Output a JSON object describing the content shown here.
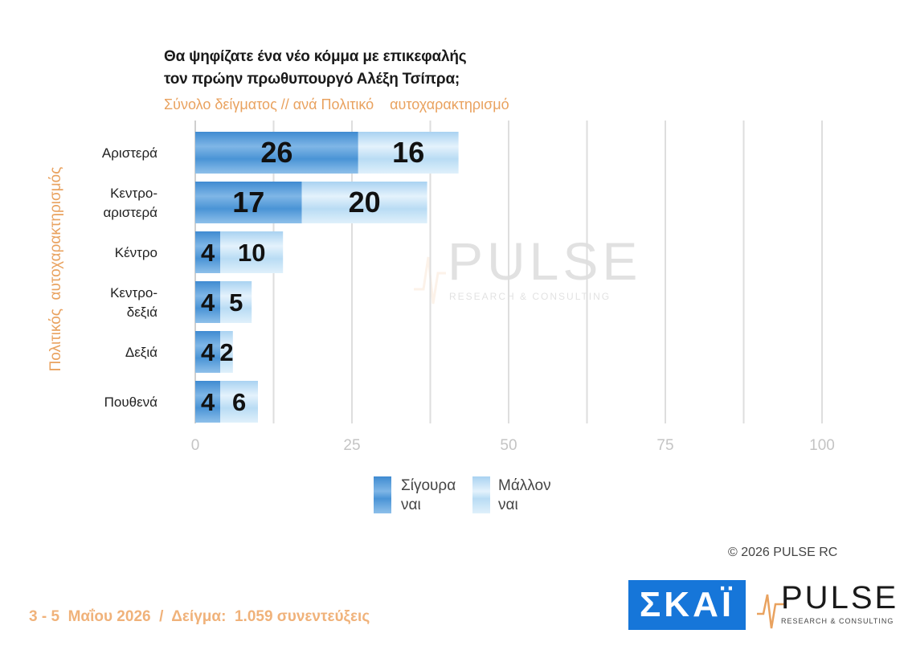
{
  "chart_data": {
    "type": "bar",
    "orientation": "horizontal",
    "stacked": true,
    "title_lines": [
      "Θα ψηφίζατε ένα νέο κόμμα με επικεφαλής",
      "τον πρώην πρωθυπουργό Αλέξη Τσίπρα;"
    ],
    "subtitle": "Σύνολο δείγματος // ανά Πολιτικό    αυτοχαρακτηρισμό",
    "ylabel": "Πολιτικός  αυτοχαρακτηρισμός",
    "categories": [
      [
        "Αριστερά"
      ],
      [
        "Κεντρο-",
        "αριστερά"
      ],
      [
        "Κέντρο"
      ],
      [
        "Κεντρο-",
        "δεξιά"
      ],
      [
        "Δεξιά"
      ],
      [
        "Πουθενά"
      ]
    ],
    "series": [
      {
        "name": "Σίγουρα ναι",
        "label_lines": [
          "Σίγουρα",
          "ναι"
        ],
        "values": [
          26,
          17,
          4,
          4,
          4,
          4
        ],
        "color": "#4a94d6"
      },
      {
        "name": "Μάλλον ναι",
        "label_lines": [
          "Μάλλον",
          "ναι"
        ],
        "values": [
          16,
          20,
          10,
          5,
          2,
          6
        ],
        "color": "#b9dcf4"
      }
    ],
    "xlim": [
      0,
      100
    ],
    "xticks": [
      "0",
      "25",
      "50",
      "75",
      "100"
    ],
    "grid": true,
    "legend_position": "bottom"
  },
  "copyright": "©  2026  PULSE RC",
  "footer": "3 - 5  Μαΐου 2026  /  Δείγμα:  1.059 συνεντεύξεις",
  "logos": {
    "skai": "ΣΚΑΪ",
    "pulse_word": "PULSE",
    "pulse_sub": "RESEARCH & CONSULTING"
  },
  "colors": {
    "accent_orange": "#e9a25f",
    "sure_yes": "#4a94d6",
    "likely_yes": "#b9dcf4",
    "skai_blue": "#1676d9"
  }
}
